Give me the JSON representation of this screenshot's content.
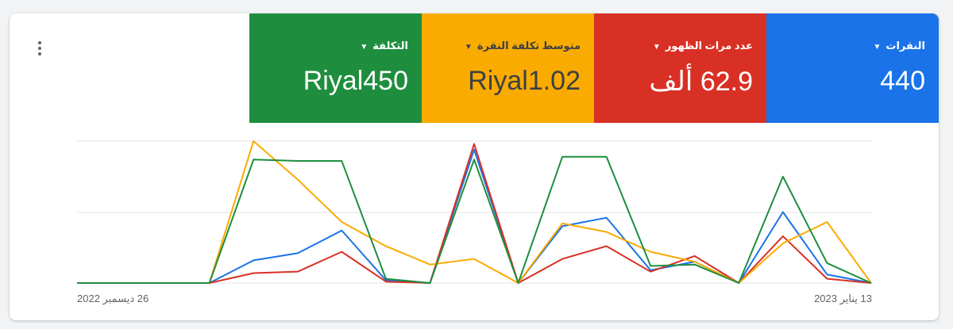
{
  "metrics": [
    {
      "title": "النقرات",
      "value": "440",
      "color": "#1a73e8",
      "text_color": "#ffffff"
    },
    {
      "title": "عدد مرات الظهور",
      "value": "62.9 ألف",
      "color": "#d93025",
      "text_color": "#ffffff"
    },
    {
      "title": "متوسط تكلفة النقرة",
      "value": "Riyal1.02",
      "color": "#f9ab00",
      "text_color": "#3c4043"
    },
    {
      "title": "التكلفة",
      "value": "Riyal450",
      "color": "#1e8e3e",
      "text_color": "#ffffff"
    }
  ],
  "menu_icon": "more-vert-icon",
  "chart_data": {
    "type": "line",
    "x_start_label": "26 ديسمبر 2022",
    "x_end_label": "13 يناير 2023",
    "x": [
      "2022-12-26",
      "2022-12-27",
      "2022-12-28",
      "2022-12-29",
      "2022-12-30",
      "2022-12-31",
      "2023-01-01",
      "2023-01-02",
      "2023-01-03",
      "2023-01-04",
      "2023-01-05",
      "2023-01-06",
      "2023-01-07",
      "2023-01-08",
      "2023-01-09",
      "2023-01-10",
      "2023-01-11",
      "2023-01-12",
      "2023-01-13"
    ],
    "y_scale": "relative per series (0-100), no axis labels",
    "grid": true,
    "series": [
      {
        "metric": "النقرات",
        "color": "#1a73e8",
        "values": [
          0,
          0,
          0,
          0,
          16,
          21,
          37,
          2,
          0,
          94,
          0,
          40,
          46,
          9,
          15,
          0,
          50,
          6,
          0
        ]
      },
      {
        "metric": "عدد مرات الظهور",
        "color": "#d93025",
        "values": [
          0,
          0,
          0,
          0,
          7,
          8,
          22,
          1,
          0,
          98,
          0,
          17,
          26,
          8,
          19,
          0,
          33,
          3,
          0
        ]
      },
      {
        "metric": "متوسط تكلفة النقرة",
        "color": "#f9ab00",
        "values": [
          0,
          0,
          0,
          0,
          100,
          73,
          43,
          26,
          13,
          17,
          0,
          42,
          36,
          22,
          15,
          0,
          28,
          43,
          0
        ]
      },
      {
        "metric": "التكلفة",
        "color": "#1e8e3e",
        "values": [
          0,
          0,
          0,
          0,
          87,
          86,
          86,
          3,
          0,
          87,
          0,
          89,
          89,
          12,
          13,
          0,
          75,
          14,
          0
        ]
      }
    ]
  }
}
